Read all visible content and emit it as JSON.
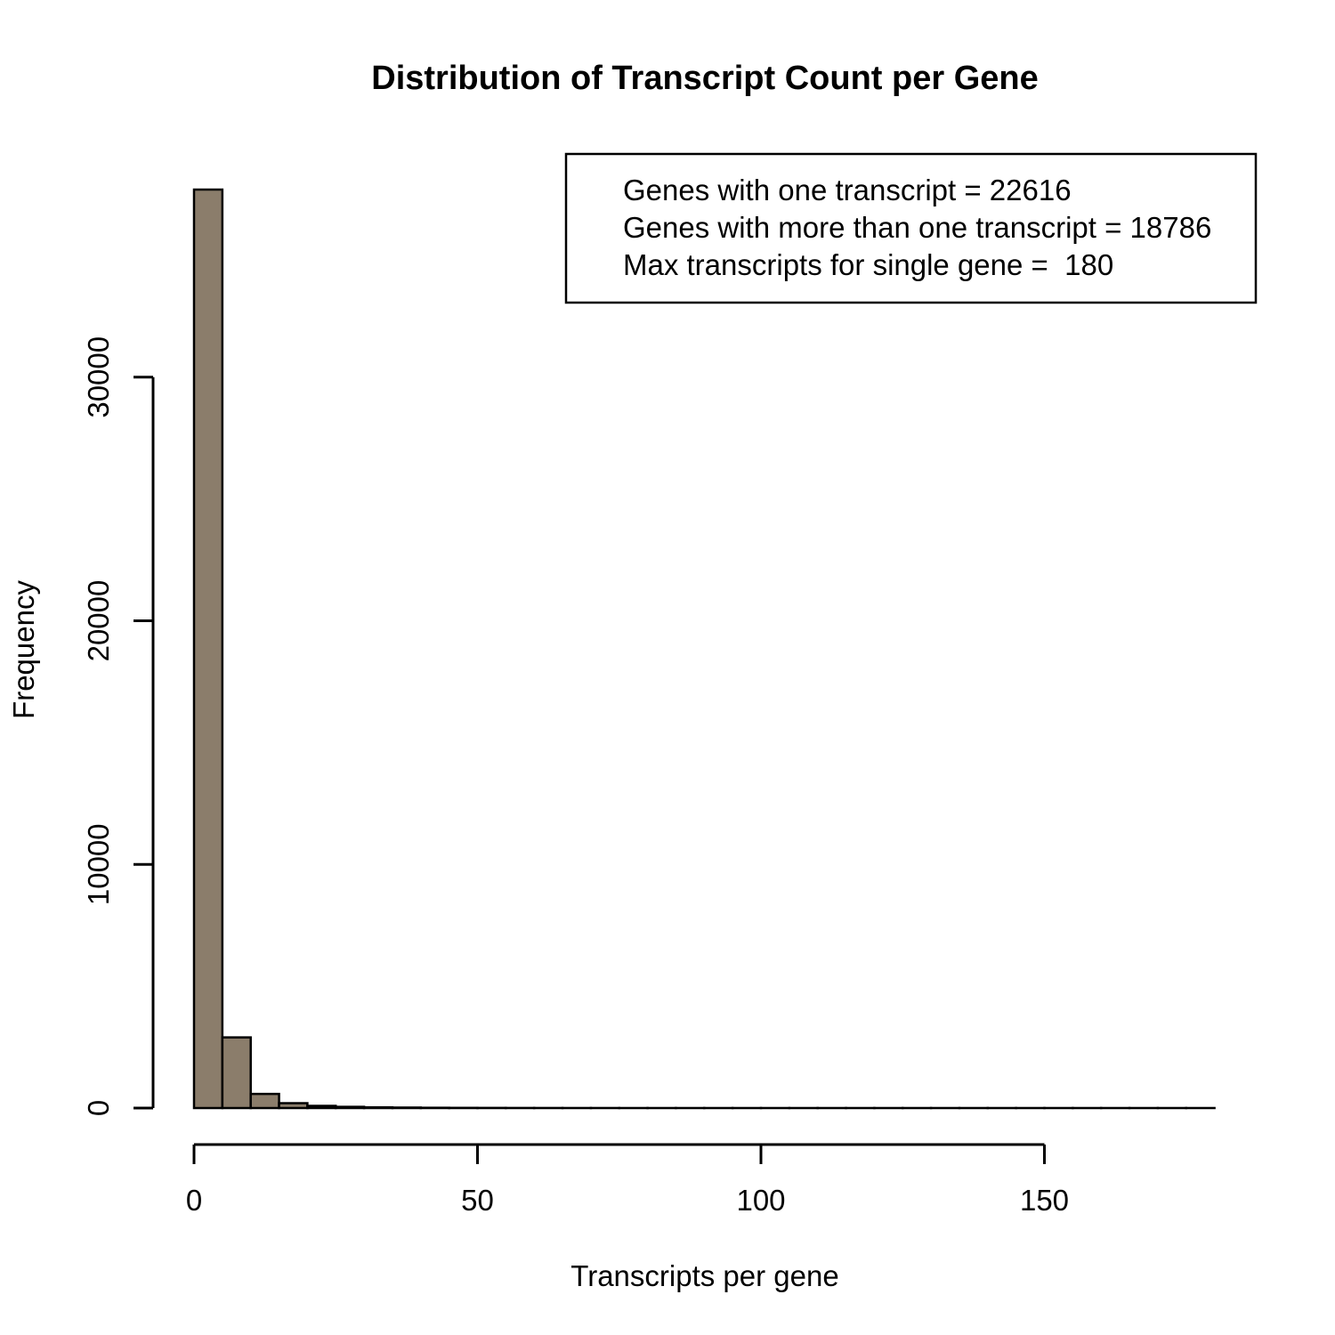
{
  "chart_data": {
    "type": "histogram",
    "title": "Distribution of Transcript Count per Gene",
    "xlabel": "Transcripts per gene",
    "ylabel": "Frequency",
    "bin_width": 5,
    "x": [
      0,
      5,
      10,
      15,
      20,
      25,
      30,
      35,
      40,
      45,
      50,
      55,
      60,
      65,
      70,
      75,
      80,
      85,
      90,
      95,
      100,
      105,
      110,
      115,
      120,
      125,
      130,
      135,
      140,
      145,
      150,
      155,
      160,
      165,
      170,
      175
    ],
    "values": [
      37700,
      2900,
      580,
      200,
      90,
      50,
      30,
      20,
      12,
      8,
      6,
      4,
      3,
      2,
      2,
      1,
      1,
      1,
      1,
      1,
      1,
      1,
      1,
      1,
      1,
      1,
      1,
      1,
      1,
      1,
      1,
      1,
      1,
      1,
      1,
      1
    ],
    "xlim": [
      0,
      180
    ],
    "ylim": [
      0,
      37700
    ],
    "x_ticks": [
      0,
      50,
      100,
      150
    ],
    "y_ticks": [
      0,
      10000,
      20000,
      30000
    ],
    "bar_color": "#8b7d6b",
    "legend": {
      "position": "top-right",
      "entries": [
        "Genes with one transcript = 22616",
        "Genes with more than one transcript = 18786",
        "Max transcripts for single gene =  180"
      ]
    }
  }
}
